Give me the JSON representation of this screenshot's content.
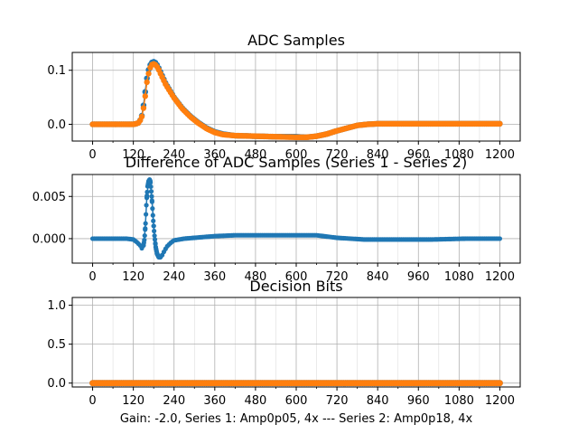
{
  "figure": {
    "xlabel": "Gain: -2.0, Series 1: Amp0p05, 4x --- Series 2: Amp0p18, 4x"
  },
  "colors": {
    "series1": "#1f77b4",
    "series2": "#ff7f0e",
    "grid": "#b0b0b0"
  },
  "chart_data": [
    {
      "type": "scatter",
      "title": "ADC Samples",
      "xlim": [
        -60,
        1260
      ],
      "ylim": [
        -0.031,
        0.133
      ],
      "xticks": [
        0,
        120,
        240,
        360,
        480,
        600,
        720,
        840,
        960,
        1080,
        1200
      ],
      "xtick_labels": [
        "0",
        "120",
        "240",
        "360",
        "480",
        "600",
        "720",
        "840",
        "960",
        "1080",
        "1200"
      ],
      "yticks": [
        0.0,
        0.1
      ],
      "ytick_labels": [
        "0.0",
        "0.1"
      ],
      "grid": true,
      "series": [
        {
          "name": "Series 1",
          "points": [
            [
              0,
              0
            ],
            [
              120,
              0
            ],
            [
              128,
              0.001
            ],
            [
              136,
              0.003
            ],
            [
              144,
              0.012
            ],
            [
              150,
              0.035
            ],
            [
              155,
              0.06
            ],
            [
              160,
              0.085
            ],
            [
              166,
              0.104
            ],
            [
              172,
              0.113
            ],
            [
              178,
              0.116
            ],
            [
              184,
              0.115
            ],
            [
              192,
              0.108
            ],
            [
              200,
              0.097
            ],
            [
              216,
              0.075
            ],
            [
              240,
              0.05
            ],
            [
              264,
              0.03
            ],
            [
              288,
              0.015
            ],
            [
              312,
              0.003
            ],
            [
              336,
              -0.007
            ],
            [
              360,
              -0.014
            ],
            [
              384,
              -0.018
            ],
            [
              420,
              -0.021
            ],
            [
              480,
              -0.022
            ],
            [
              540,
              -0.023
            ],
            [
              600,
              -0.023
            ],
            [
              630,
              -0.024
            ],
            [
              660,
              -0.022
            ],
            [
              690,
              -0.018
            ],
            [
              720,
              -0.012
            ],
            [
              750,
              -0.007
            ],
            [
              780,
              -0.002
            ],
            [
              810,
              0.0
            ],
            [
              840,
              0.001
            ],
            [
              900,
              0.001
            ],
            [
              960,
              0.001
            ],
            [
              1080,
              0.001
            ],
            [
              1200,
              0.001
            ]
          ]
        },
        {
          "name": "Series 2",
          "points": [
            [
              0,
              0
            ],
            [
              120,
              0
            ],
            [
              128,
              0.001
            ],
            [
              136,
              0.003
            ],
            [
              144,
              0.011
            ],
            [
              150,
              0.03
            ],
            [
              155,
              0.052
            ],
            [
              160,
              0.078
            ],
            [
              166,
              0.097
            ],
            [
              172,
              0.109
            ],
            [
              178,
              0.112
            ],
            [
              184,
              0.111
            ],
            [
              192,
              0.105
            ],
            [
              200,
              0.094
            ],
            [
              216,
              0.073
            ],
            [
              240,
              0.049
            ],
            [
              264,
              0.029
            ],
            [
              288,
              0.014
            ],
            [
              312,
              0.002
            ],
            [
              336,
              -0.008
            ],
            [
              360,
              -0.015
            ],
            [
              384,
              -0.019
            ],
            [
              420,
              -0.021
            ],
            [
              480,
              -0.022
            ],
            [
              540,
              -0.023
            ],
            [
              600,
              -0.024
            ],
            [
              630,
              -0.024
            ],
            [
              660,
              -0.022
            ],
            [
              690,
              -0.018
            ],
            [
              720,
              -0.012
            ],
            [
              750,
              -0.007
            ],
            [
              780,
              -0.002
            ],
            [
              810,
              0.0
            ],
            [
              840,
              0.001
            ],
            [
              900,
              0.001
            ],
            [
              960,
              0.001
            ],
            [
              1080,
              0.001
            ],
            [
              1200,
              0.001
            ]
          ]
        }
      ]
    },
    {
      "type": "line",
      "title": "Difference of ADC Samples (Series 1 - Series 2)",
      "xlim": [
        -60,
        1260
      ],
      "ylim": [
        -0.0029,
        0.0076
      ],
      "xticks": [
        0,
        120,
        240,
        360,
        480,
        600,
        720,
        840,
        960,
        1080,
        1200
      ],
      "xtick_labels": [
        "0",
        "120",
        "240",
        "360",
        "480",
        "600",
        "720",
        "840",
        "960",
        "1080",
        "1200"
      ],
      "yticks": [
        0.0,
        0.005
      ],
      "ytick_labels": [
        "0.000",
        "0.005"
      ],
      "grid": true,
      "series": [
        {
          "name": "Series 1 - Series 2",
          "points": [
            [
              0,
              0
            ],
            [
              100,
              0.0
            ],
            [
              120,
              -0.0001
            ],
            [
              130,
              -0.0004
            ],
            [
              140,
              -0.0008
            ],
            [
              146,
              -0.0012
            ],
            [
              150,
              -0.0008
            ],
            [
              153,
              0.0
            ],
            [
              156,
              0.0018
            ],
            [
              159,
              0.0045
            ],
            [
              162,
              0.0062
            ],
            [
              165,
              0.0068
            ],
            [
              168,
              0.007
            ],
            [
              170,
              0.0068
            ],
            [
              172,
              0.006
            ],
            [
              175,
              0.0045
            ],
            [
              178,
              0.0025
            ],
            [
              182,
              0.0005
            ],
            [
              186,
              -0.001
            ],
            [
              190,
              -0.0018
            ],
            [
              195,
              -0.0022
            ],
            [
              200,
              -0.0022
            ],
            [
              206,
              -0.0019
            ],
            [
              212,
              -0.0014
            ],
            [
              220,
              -0.0009
            ],
            [
              230,
              -0.0005
            ],
            [
              240,
              -0.0002
            ],
            [
              270,
              0.0
            ],
            [
              300,
              0.0001
            ],
            [
              360,
              0.0003
            ],
            [
              420,
              0.0004
            ],
            [
              480,
              0.0004
            ],
            [
              540,
              0.0004
            ],
            [
              600,
              0.0004
            ],
            [
              660,
              0.0004
            ],
            [
              700,
              0.0002
            ],
            [
              720,
              0.0001
            ],
            [
              760,
              0.0
            ],
            [
              800,
              -0.0001
            ],
            [
              900,
              -0.0001
            ],
            [
              1000,
              -0.0001
            ],
            [
              1100,
              0.0
            ],
            [
              1200,
              0.0
            ]
          ]
        }
      ]
    },
    {
      "type": "scatter",
      "title": "Decision Bits",
      "xlim": [
        -60,
        1260
      ],
      "ylim": [
        -0.05,
        1.1
      ],
      "xticks": [
        0,
        120,
        240,
        360,
        480,
        600,
        720,
        840,
        960,
        1080,
        1200
      ],
      "xtick_labels": [
        "0",
        "120",
        "240",
        "360",
        "480",
        "600",
        "720",
        "840",
        "960",
        "1080",
        "1200"
      ],
      "yticks": [
        0.0,
        0.5,
        1.0
      ],
      "ytick_labels": [
        "0.0",
        "0.5",
        "1.0"
      ],
      "grid": true,
      "series": [
        {
          "name": "Series 1",
          "points": [
            [
              0,
              0
            ],
            [
              1200,
              0
            ]
          ]
        },
        {
          "name": "Series 2",
          "points": [
            [
              0,
              0
            ],
            [
              1200,
              0
            ]
          ]
        }
      ]
    }
  ]
}
